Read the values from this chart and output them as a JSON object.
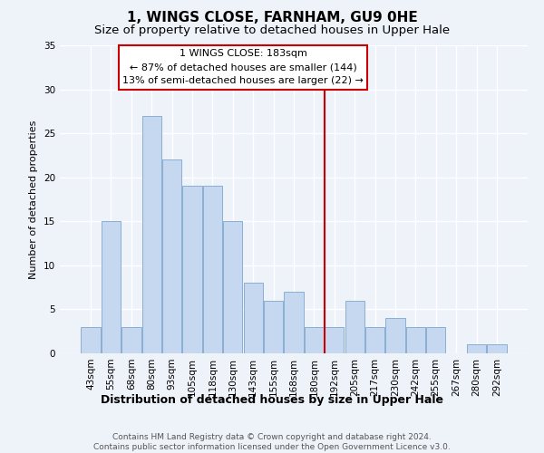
{
  "title": "1, WINGS CLOSE, FARNHAM, GU9 0HE",
  "subtitle": "Size of property relative to detached houses in Upper Hale",
  "xlabel": "Distribution of detached houses by size in Upper Hale",
  "ylabel": "Number of detached properties",
  "bar_color": "#c5d8f0",
  "bar_edgecolor": "#8aafd4",
  "background_color": "#eef2f9",
  "grid_color": "#ffffff",
  "bin_labels": [
    "43sqm",
    "55sqm",
    "68sqm",
    "80sqm",
    "93sqm",
    "105sqm",
    "118sqm",
    "130sqm",
    "143sqm",
    "155sqm",
    "168sqm",
    "180sqm",
    "192sqm",
    "205sqm",
    "217sqm",
    "230sqm",
    "242sqm",
    "255sqm",
    "267sqm",
    "280sqm",
    "292sqm"
  ],
  "bar_heights": [
    3,
    15,
    3,
    27,
    22,
    19,
    19,
    15,
    8,
    6,
    7,
    3,
    3,
    6,
    3,
    4,
    3,
    3,
    0,
    1,
    1
  ],
  "vline_x": 11.5,
  "vline_color": "#cc0000",
  "ylim": [
    0,
    35
  ],
  "yticks": [
    0,
    5,
    10,
    15,
    20,
    25,
    30,
    35
  ],
  "annotation_title": "1 WINGS CLOSE: 183sqm",
  "annotation_line1": "← 87% of detached houses are smaller (144)",
  "annotation_line2": "13% of semi-detached houses are larger (22) →",
  "footer1": "Contains HM Land Registry data © Crown copyright and database right 2024.",
  "footer2": "Contains public sector information licensed under the Open Government Licence v3.0.",
  "title_fontsize": 11,
  "subtitle_fontsize": 9.5,
  "xlabel_fontsize": 9,
  "ylabel_fontsize": 8,
  "tick_fontsize": 7.5,
  "annotation_fontsize": 8,
  "footer_fontsize": 6.5
}
